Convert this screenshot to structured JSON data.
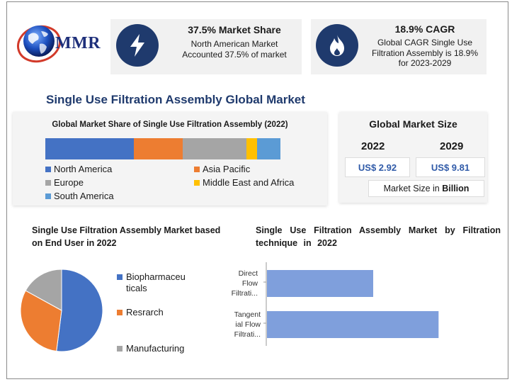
{
  "logo": {
    "text": "MMR"
  },
  "stats": [
    {
      "icon": "lightning-bolt-icon",
      "title": "37.5% Market Share",
      "description": "North American Market Accounted 37.5% of market"
    },
    {
      "icon": "flame-icon",
      "title": "18.9% CAGR",
      "description": "Global CAGR Single Use Filtration Assembly is 18.9% for 2023-2029"
    }
  ],
  "main_title": "Single Use Filtration Assembly Global Market",
  "market_size": {
    "title": "Global Market Size",
    "years": [
      "2022",
      "2029"
    ],
    "values": [
      "US$ 2.92",
      "US$ 9.81"
    ],
    "unit_prefix": "Market Size in ",
    "unit_bold": "Billion"
  },
  "colors": {
    "north_america": "#4472c4",
    "asia_pacific": "#ed7d31",
    "europe": "#a5a5a5",
    "mea": "#ffc000",
    "south_america": "#5b9bd5",
    "hbar": "#7f9fdc",
    "icon_bg": "#1f3a6d"
  },
  "chart_data": [
    {
      "type": "bar",
      "orientation": "horizontal-stacked",
      "title": "Global Market Share of Single Use Filtration Assembly (2022)",
      "series": [
        {
          "name": "North America",
          "values": [
            37.5
          ]
        },
        {
          "name": "Asia Pacific",
          "values": [
            21.0
          ]
        },
        {
          "name": "Europe",
          "values": [
            27.0
          ]
        },
        {
          "name": "Middle East and Africa",
          "values": [
            4.5
          ]
        },
        {
          "name": "South America",
          "values": [
            10.0
          ]
        }
      ],
      "legend": "bottom"
    },
    {
      "type": "pie",
      "title": "Single Use Filtration Assembly Market based on End User in 2022",
      "labels": [
        "Biopharmaceuticals",
        "Resrarch",
        "Manufacturing"
      ],
      "label_lines": [
        [
          "Biopharmaceu",
          "ticals"
        ],
        [
          "Resrarch"
        ],
        [
          "Manufacturing"
        ]
      ],
      "values": [
        52,
        31,
        17
      ],
      "legend": "right"
    },
    {
      "type": "bar",
      "orientation": "horizontal",
      "title": "Single Use Filtration Assembly Market by Filtration technique in 2022",
      "categories": [
        "Direct Flow Filtration",
        "Tangential Flow Filtration"
      ],
      "category_lines": [
        [
          "Direct",
          "Flow",
          "Filtrati..."
        ],
        [
          "Tangent",
          "ial Flow",
          "Filtrati..."
        ]
      ],
      "values": [
        39,
        63
      ]
    }
  ]
}
